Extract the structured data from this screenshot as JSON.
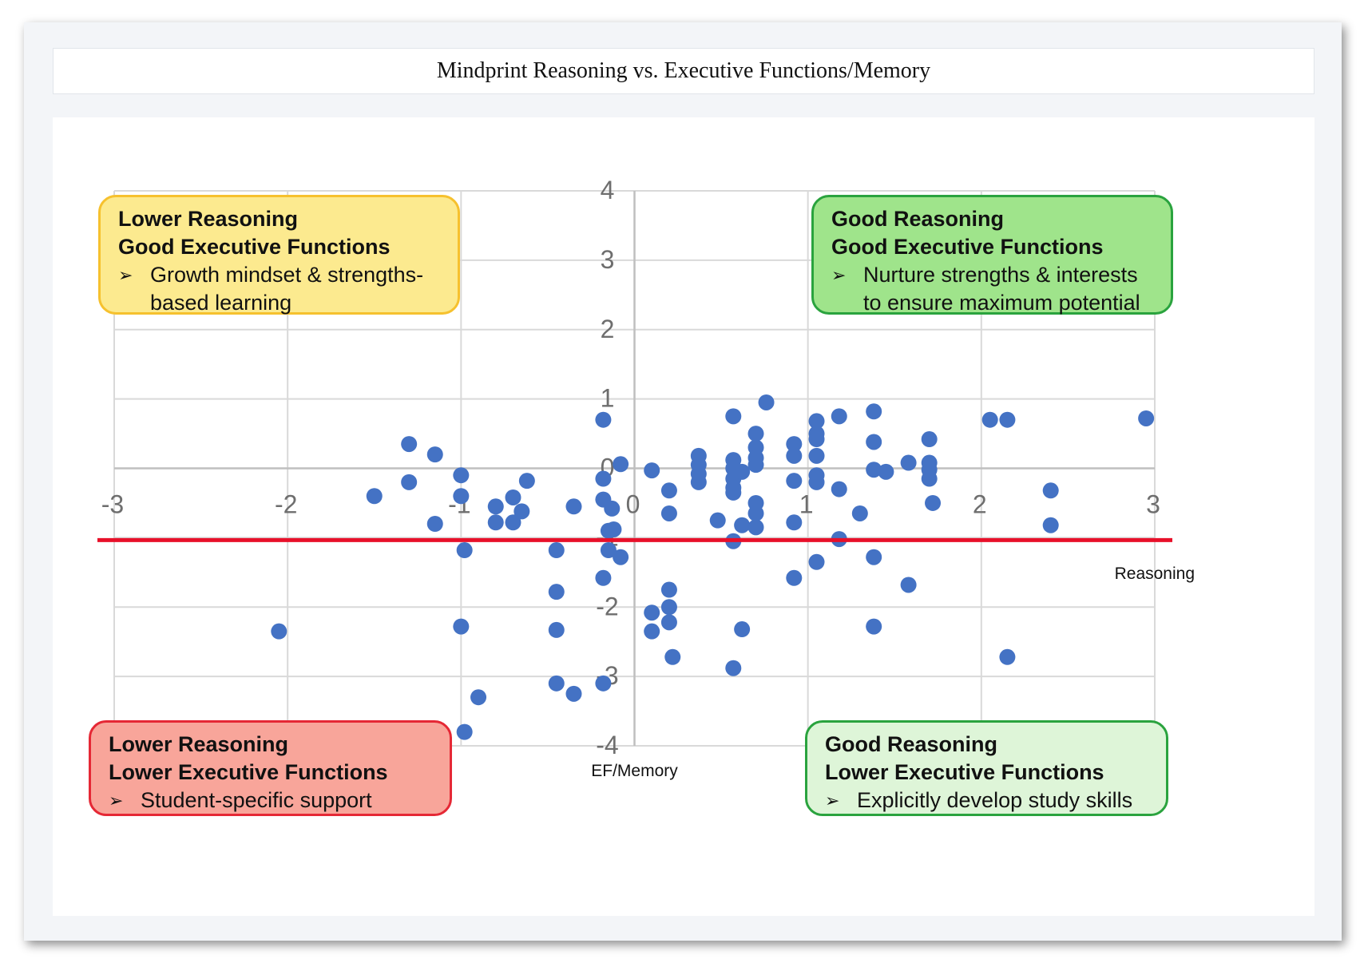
{
  "chart_data": {
    "type": "scatter",
    "title": "Mindprint Reasoning vs. Executive Functions/Memory",
    "xlabel": "Reasoning",
    "ylabel": "EF/Memory",
    "xlim": [
      -3,
      3
    ],
    "ylim": [
      -4,
      4
    ],
    "x_ticks": [
      -3,
      -2,
      -1,
      0,
      1,
      2,
      3
    ],
    "y_ticks": [
      4,
      3,
      2,
      1,
      0,
      -1,
      -2,
      -3,
      -4
    ],
    "x_tick_labels": [
      "-3",
      "-2",
      "-1",
      "0",
      "1",
      "2",
      "3"
    ],
    "y_tick_labels": [
      "4",
      "3",
      "2",
      "1",
      "0",
      "-1",
      "-2",
      "-3",
      "-4"
    ],
    "threshold_line": {
      "y": -1.0,
      "color": "#e8102a"
    },
    "point_color": "#4472c4",
    "points": [
      [
        -2.05,
        -2.35
      ],
      [
        -1.5,
        -0.4
      ],
      [
        -1.3,
        0.35
      ],
      [
        -1.3,
        -0.2
      ],
      [
        -1.15,
        0.2
      ],
      [
        -1.15,
        -0.8
      ],
      [
        -1.0,
        -0.1
      ],
      [
        -1.0,
        -0.4
      ],
      [
        -0.98,
        -1.18
      ],
      [
        -1.0,
        -2.28
      ],
      [
        -0.98,
        -3.8
      ],
      [
        -0.9,
        -3.3
      ],
      [
        -0.8,
        -0.55
      ],
      [
        -0.8,
        -0.78
      ],
      [
        -0.7,
        -0.42
      ],
      [
        -0.7,
        -0.78
      ],
      [
        -0.65,
        -0.62
      ],
      [
        -0.62,
        -0.18
      ],
      [
        -0.45,
        -1.18
      ],
      [
        -0.45,
        -1.78
      ],
      [
        -0.45,
        -2.33
      ],
      [
        -0.45,
        -3.1
      ],
      [
        -0.35,
        -0.55
      ],
      [
        -0.35,
        -3.25
      ],
      [
        -0.18,
        0.7
      ],
      [
        -0.18,
        -0.15
      ],
      [
        -0.18,
        -0.45
      ],
      [
        -0.18,
        -1.58
      ],
      [
        -0.18,
        -3.1
      ],
      [
        -0.15,
        -0.9
      ],
      [
        -0.15,
        -1.18
      ],
      [
        -0.13,
        -0.58
      ],
      [
        -0.12,
        -0.88
      ],
      [
        -0.08,
        0.06
      ],
      [
        -0.08,
        -1.28
      ],
      [
        0.1,
        -0.03
      ],
      [
        0.2,
        -0.32
      ],
      [
        0.2,
        -0.65
      ],
      [
        0.2,
        -1.75
      ],
      [
        0.2,
        -2.0
      ],
      [
        0.2,
        -2.22
      ],
      [
        0.1,
        -2.08
      ],
      [
        0.1,
        -2.35
      ],
      [
        0.22,
        -2.72
      ],
      [
        0.37,
        0.18
      ],
      [
        0.37,
        0.05
      ],
      [
        0.37,
        -0.08
      ],
      [
        0.37,
        -0.2
      ],
      [
        0.48,
        -0.75
      ],
      [
        0.57,
        0.75
      ],
      [
        0.57,
        0.12
      ],
      [
        0.57,
        0.0
      ],
      [
        0.57,
        -0.15
      ],
      [
        0.57,
        -0.28
      ],
      [
        0.57,
        -0.35
      ],
      [
        0.57,
        -1.05
      ],
      [
        0.57,
        -2.88
      ],
      [
        0.62,
        -0.05
      ],
      [
        0.62,
        -0.82
      ],
      [
        0.62,
        -2.32
      ],
      [
        0.7,
        0.5
      ],
      [
        0.7,
        0.3
      ],
      [
        0.7,
        0.15
      ],
      [
        0.7,
        0.05
      ],
      [
        0.7,
        -0.5
      ],
      [
        0.7,
        -0.65
      ],
      [
        0.7,
        -0.85
      ],
      [
        0.76,
        0.95
      ],
      [
        0.92,
        0.35
      ],
      [
        0.92,
        0.18
      ],
      [
        0.92,
        -0.18
      ],
      [
        0.92,
        -0.78
      ],
      [
        0.92,
        -1.58
      ],
      [
        1.05,
        0.68
      ],
      [
        1.05,
        0.5
      ],
      [
        1.05,
        0.42
      ],
      [
        1.05,
        0.18
      ],
      [
        1.05,
        -0.1
      ],
      [
        1.05,
        -0.2
      ],
      [
        1.05,
        -1.35
      ],
      [
        1.18,
        0.75
      ],
      [
        1.18,
        -0.3
      ],
      [
        1.18,
        -1.02
      ],
      [
        1.3,
        -0.65
      ],
      [
        1.38,
        0.82
      ],
      [
        1.38,
        0.38
      ],
      [
        1.38,
        -0.02
      ],
      [
        1.38,
        -1.28
      ],
      [
        1.38,
        -2.28
      ],
      [
        1.45,
        -0.05
      ],
      [
        1.58,
        0.08
      ],
      [
        1.58,
        -1.68
      ],
      [
        1.7,
        0.42
      ],
      [
        1.7,
        0.08
      ],
      [
        1.7,
        -0.02
      ],
      [
        1.7,
        -0.15
      ],
      [
        1.72,
        -0.5
      ],
      [
        2.05,
        0.7
      ],
      [
        2.15,
        0.7
      ],
      [
        2.15,
        -2.72
      ],
      [
        2.4,
        -0.32
      ],
      [
        2.4,
        -0.82
      ],
      [
        2.95,
        0.72
      ]
    ]
  },
  "quadrants": {
    "top_left": {
      "line1": "Lower Reasoning",
      "line2": "Good Executive Functions",
      "bullet": "Growth mindset & strengths-based learning",
      "fill": "#fcea8f",
      "border": "#f6c12e"
    },
    "top_right": {
      "line1": "Good Reasoning",
      "line2": "Good Executive Functions",
      "bullet": "Nurture strengths & interests to ensure maximum potential",
      "fill": "#9fe48b",
      "border": "#2aa33e"
    },
    "bottom_left": {
      "line1": "Lower Reasoning",
      "line2": "Lower Executive Functions",
      "bullet": "Student-specific support",
      "fill": "#f8a59a",
      "border": "#e52835"
    },
    "bottom_right": {
      "line1": "Good Reasoning",
      "line2": "Lower Executive Functions",
      "bullet": "Explicitly develop study skills",
      "fill": "#def5d8",
      "border": "#2aa33e"
    },
    "bullet_marker": "➢"
  }
}
